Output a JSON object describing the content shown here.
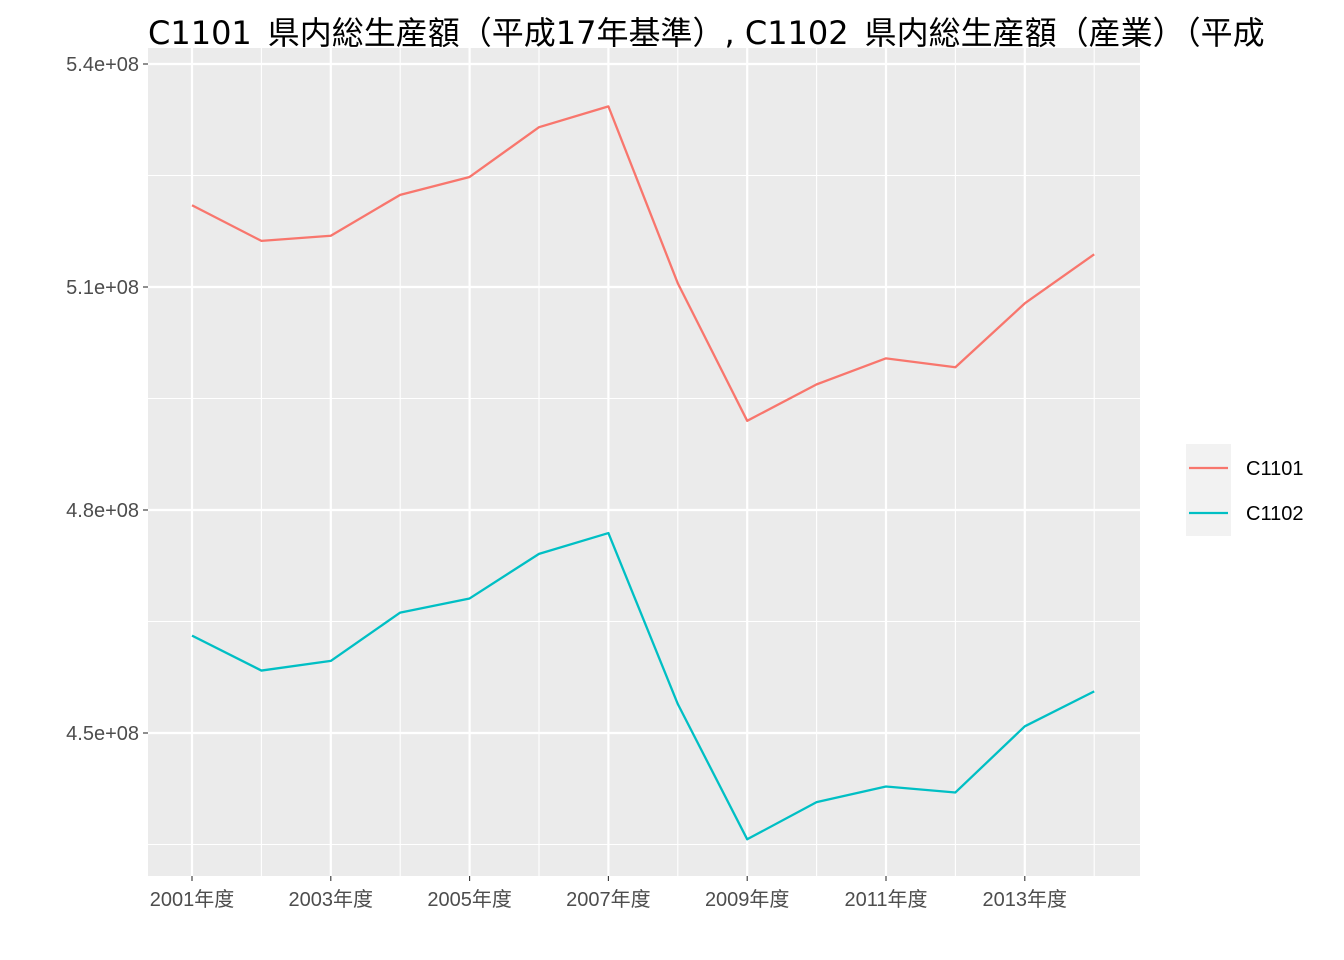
{
  "chart_data": {
    "type": "line",
    "title": "C1101_県内総生産額（平成17年基準）, C1102_県内総生産額（産業）（平成",
    "xlabel": "",
    "ylabel": "",
    "x": [
      "2001年度",
      "2002年度",
      "2003年度",
      "2004年度",
      "2005年度",
      "2006年度",
      "2007年度",
      "2008年度",
      "2009年度",
      "2010年度",
      "2011年度",
      "2012年度",
      "2013年度",
      "2014年度"
    ],
    "x_tick_labels": [
      "2001年度",
      "2003年度",
      "2005年度",
      "2007年度",
      "2009年度",
      "2011年度",
      "2013年度"
    ],
    "ylim": [
      435000000.0,
      540000000.0
    ],
    "y_ticks": [
      450000000.0,
      480000000.0,
      510000000.0,
      540000000.0
    ],
    "y_tick_labels": [
      "4.5e+08",
      "4.8e+08",
      "5.1e+08",
      "5.4e+08"
    ],
    "grid": true,
    "legend_position": "right",
    "series": [
      {
        "name": "C1101",
        "color": "#F8766D",
        "values": [
          521000000,
          516200000,
          516900000,
          522400000,
          524800000,
          531500000,
          534300000,
          510500000,
          492000000,
          496900000,
          500400000,
          499200000,
          507800000,
          514400000
        ]
      },
      {
        "name": "C1102",
        "color": "#00BFC4",
        "values": [
          463100000,
          458400000,
          459700000,
          466200000,
          468100000,
          474100000,
          476900000,
          453900000,
          435700000,
          440700000,
          442800000,
          442000000,
          450900000,
          455600000
        ]
      }
    ]
  }
}
